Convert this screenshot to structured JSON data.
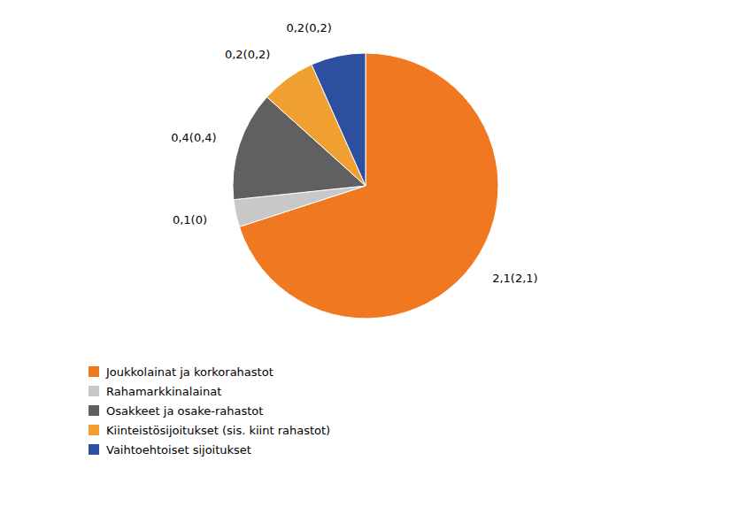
{
  "chart_data": {
    "type": "pie",
    "categories": [
      "Joukkolainat ja korkorahastot",
      "Rahamarkkinalainat",
      "Osakkeet ja osake-rahastot",
      "Kiinteistösijoitukset (sis. kiint rahastot)",
      "Vaihtoehtoiset sijoitukset"
    ],
    "values": [
      2.1,
      0.1,
      0.4,
      0.2,
      0.2
    ],
    "value_labels": [
      "2,1(2,1)",
      "0,1(0)",
      "0,4(0,4)",
      "0,2(0,2)",
      "0,2(0,2)"
    ],
    "colors": [
      "#F07820",
      "#C8C8C8",
      "#606060",
      "#F0A030",
      "#2E4EA0"
    ],
    "data_labels": true,
    "legend": "bottom"
  }
}
